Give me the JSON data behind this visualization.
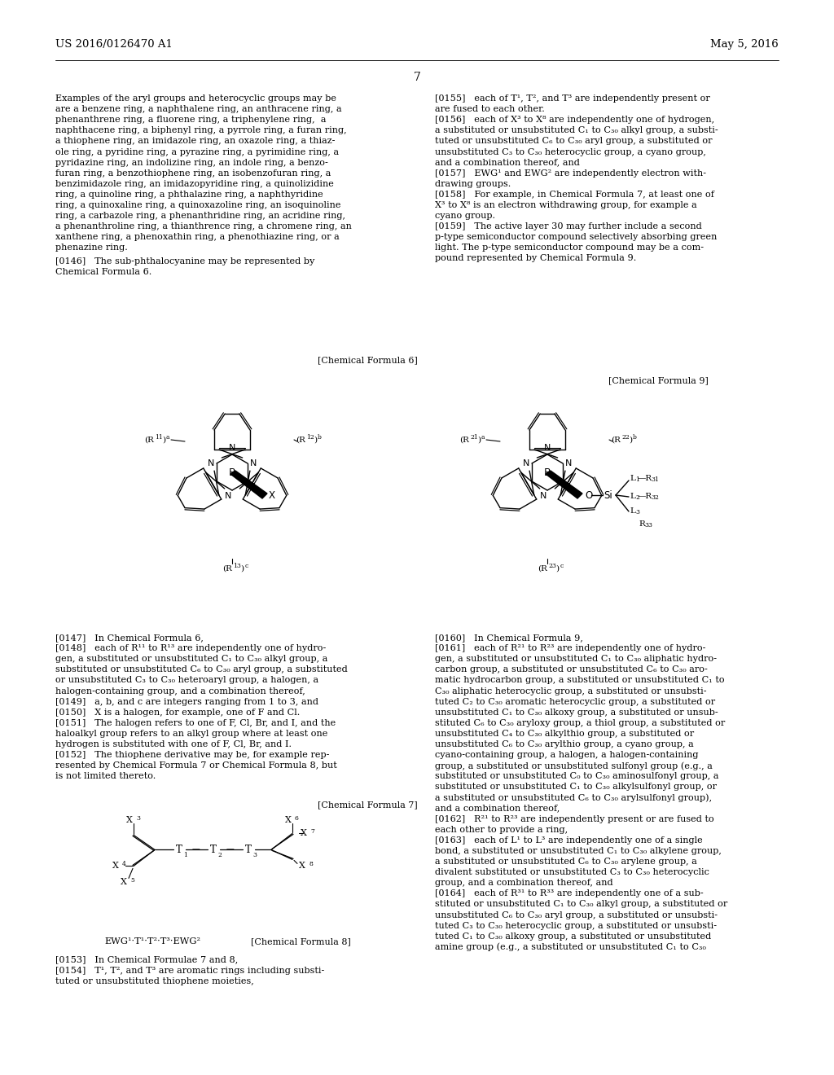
{
  "bg": "#ffffff",
  "header_left": "US 2016/0126470 A1",
  "header_right": "May 5, 2016",
  "page_num": "7"
}
